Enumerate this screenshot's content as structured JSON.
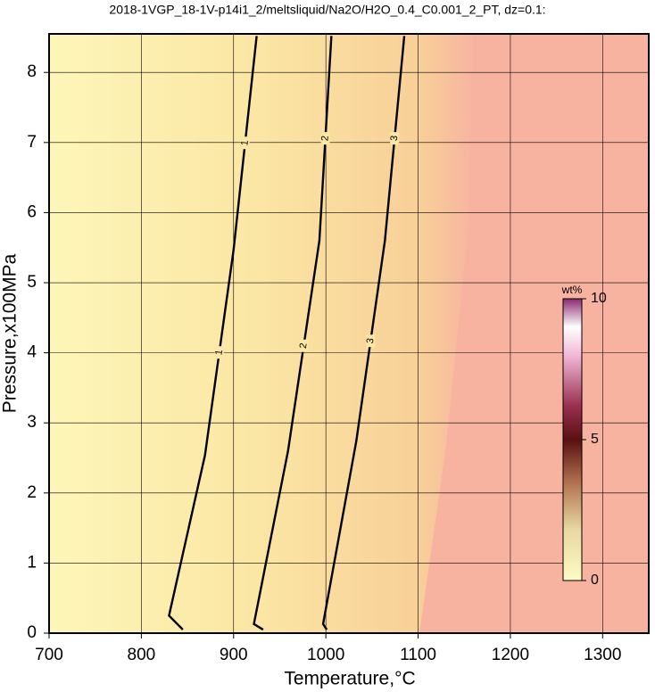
{
  "chart_data": {
    "type": "contour",
    "title": "2018-1VGP_18-1V-p14i1_2/meltsliquid/Na2O/H2O_0.4_C0.001_2_PT, dz=0.1:",
    "x_label": "Temperature,°C",
    "y_label": "Pressure,x100MPa",
    "xlim": [
      700,
      1350
    ],
    "ylim": [
      0,
      8.55
    ],
    "xticks": [
      700,
      800,
      900,
      1000,
      1100,
      1200,
      1300
    ],
    "yticks": [
      0,
      1,
      2,
      3,
      4,
      5,
      6,
      7,
      8
    ],
    "grid": true,
    "series": [
      {
        "name": "1",
        "color": "#000000",
        "x": [
          845,
          830,
          869,
          900,
          925
        ],
        "y": [
          0.05,
          0.25,
          2.54,
          5.47,
          8.52
        ]
      },
      {
        "name": "2",
        "color": "#000000",
        "x": [
          932,
          922,
          959,
          993,
          1006
        ],
        "y": [
          0.05,
          0.13,
          2.6,
          5.6,
          8.52
        ]
      },
      {
        "name": "3",
        "color": "#000000",
        "x": [
          1001,
          997,
          1033,
          1064,
          1085
        ],
        "y": [
          0.05,
          0.13,
          2.74,
          5.6,
          8.52
        ]
      }
    ],
    "colorbar": {
      "label": "wt%",
      "lim": [
        0,
        10
      ],
      "ticks": [
        0,
        5,
        10
      ]
    }
  }
}
